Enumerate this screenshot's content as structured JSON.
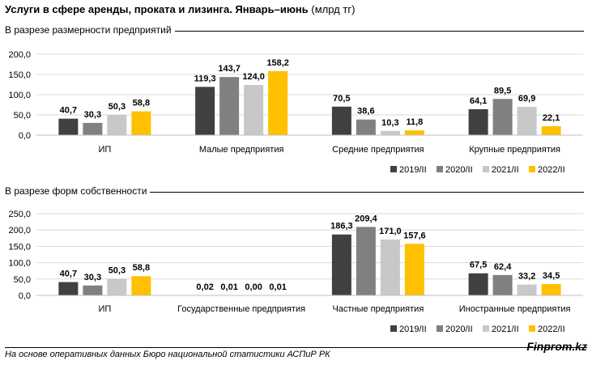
{
  "header": {
    "title_bold": "Услуги в сфере аренды, проката и лизинга. Январь–июнь",
    "title_unit": "(млрд тг)"
  },
  "footer": {
    "source": "На основе оперативных данных Бюро национальной статистики АСПиР РК",
    "brand": "Finprom.kz"
  },
  "colors": {
    "2019/II": "#404040",
    "2020/II": "#808080",
    "2021/II": "#c8c8c8",
    "2022/II": "#ffc000"
  },
  "chart_data": [
    {
      "type": "bar",
      "title": "В разрезе размерности предприятий",
      "categories": [
        "ИП",
        "Малые предприятия",
        "Средние предприятия",
        "Крупные предприятия"
      ],
      "series": [
        {
          "name": "2019/II",
          "values": [
            40.7,
            119.3,
            70.5,
            64.1
          ],
          "labels": [
            "40,7",
            "119,3",
            "70,5",
            "64,1"
          ]
        },
        {
          "name": "2020/II",
          "values": [
            30.3,
            143.7,
            38.6,
            89.5
          ],
          "labels": [
            "30,3",
            "143,7",
            "38,6",
            "89,5"
          ]
        },
        {
          "name": "2021/II",
          "values": [
            50.3,
            124.0,
            10.3,
            69.9
          ],
          "labels": [
            "50,3",
            "124,0",
            "10,3",
            "69,9"
          ]
        },
        {
          "name": "2022/II",
          "values": [
            58.8,
            158.2,
            11.8,
            22.1
          ],
          "labels": [
            "58,8",
            "158,2",
            "11,8",
            "22,1"
          ]
        }
      ],
      "ylim": [
        0,
        200
      ],
      "yticks": [
        "0,0",
        "50,0",
        "100,0",
        "150,0",
        "200,0"
      ],
      "grid": true,
      "legend": "bottom-right"
    },
    {
      "type": "bar",
      "title": "В разрезе форм собственности",
      "categories": [
        "ИП",
        "Государственные предприятия",
        "Частные предприятия",
        "Иностранные предприятия"
      ],
      "series": [
        {
          "name": "2019/II",
          "values": [
            40.7,
            0.02,
            186.3,
            67.5
          ],
          "labels": [
            "40,7",
            "0,02",
            "186,3",
            "67,5"
          ]
        },
        {
          "name": "2020/II",
          "values": [
            30.3,
            0.01,
            209.4,
            62.4
          ],
          "labels": [
            "30,3",
            "0,01",
            "209,4",
            "62,4"
          ]
        },
        {
          "name": "2021/II",
          "values": [
            50.3,
            0.0,
            171.0,
            33.2
          ],
          "labels": [
            "50,3",
            "0,00",
            "171,0",
            "33,2"
          ]
        },
        {
          "name": "2022/II",
          "values": [
            58.8,
            0.01,
            157.6,
            34.5
          ],
          "labels": [
            "58,8",
            "0,01",
            "157,6",
            "34,5"
          ]
        }
      ],
      "ylim": [
        0,
        250
      ],
      "yticks": [
        "0,0",
        "50,0",
        "100,0",
        "150,0",
        "200,0",
        "250,0"
      ],
      "grid": true,
      "legend": "bottom-right"
    }
  ]
}
